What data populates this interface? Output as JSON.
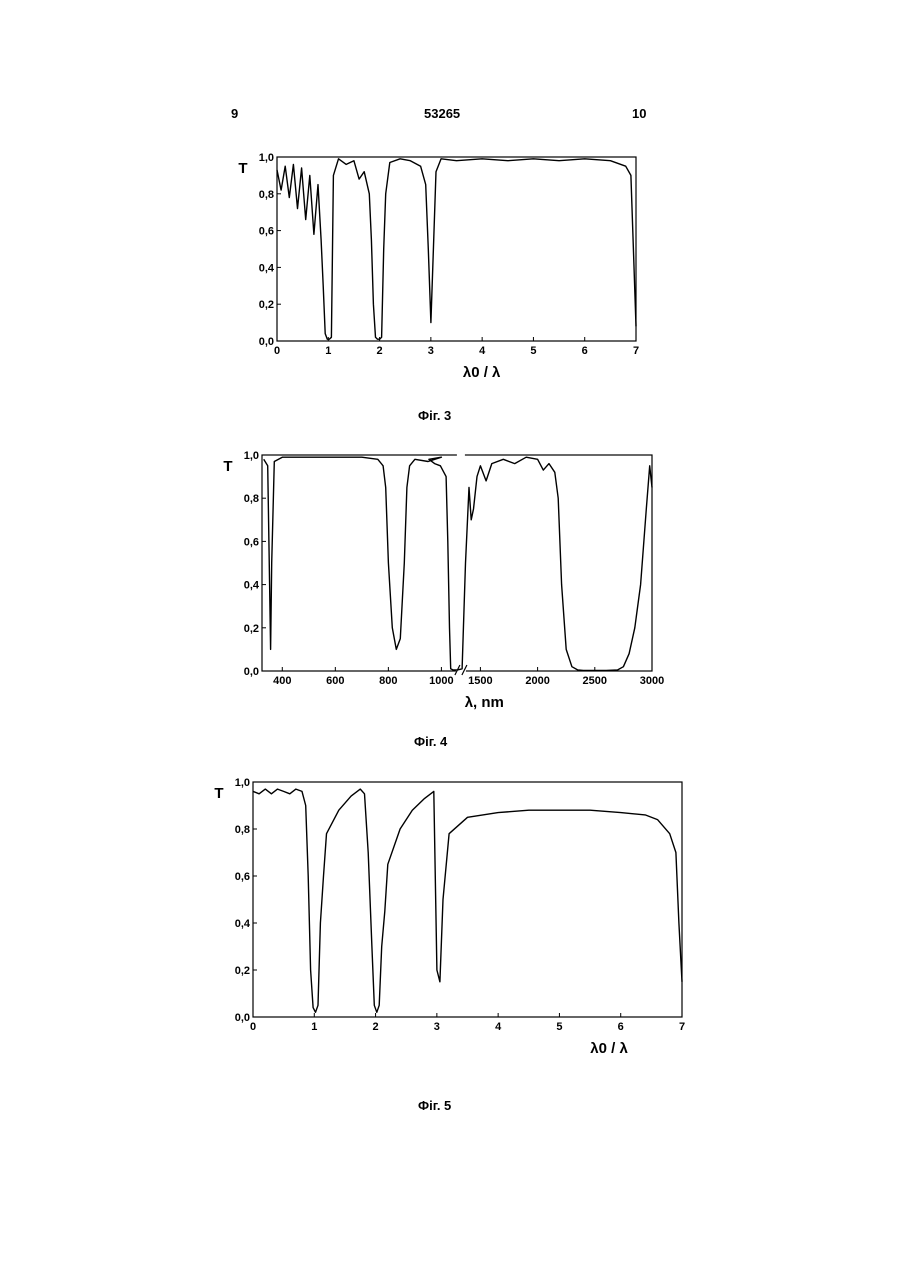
{
  "header": {
    "left_page": "9",
    "center_number": "53265",
    "right_page": "10"
  },
  "figures": [
    {
      "caption": "Фіг. 3",
      "ylabel": "T",
      "xlabel": "λ0 / λ"
    },
    {
      "caption": "Фіг. 4",
      "ylabel": "T",
      "xlabel": "λ, nm"
    },
    {
      "caption": "Фіг. 5",
      "ylabel": "T",
      "xlabel": "λ0 / λ"
    }
  ],
  "chart_data": [
    {
      "type": "line",
      "title": "",
      "ylabel": "T",
      "xlabel": "λ0 / λ",
      "xlim": [
        0,
        7
      ],
      "ylim": [
        0,
        1
      ],
      "x_ticks": [
        "0",
        "1",
        "2",
        "3",
        "4",
        "5",
        "6",
        "7"
      ],
      "y_ticks": [
        "0,0",
        "0,2",
        "0,4",
        "0,6",
        "0,8",
        "1,0"
      ],
      "grid": false,
      "series": [
        {
          "x": [
            0,
            0.08,
            0.16,
            0.24,
            0.32,
            0.4,
            0.48,
            0.56,
            0.64,
            0.72,
            0.8,
            0.86,
            0.9,
            0.94,
            0.98,
            1.02,
            1.06,
            1.1,
            1.2,
            1.35,
            1.5,
            1.6,
            1.7,
            1.8,
            1.84,
            1.88,
            1.92,
            1.96,
            2.0,
            2.04,
            2.08,
            2.12,
            2.2,
            2.4,
            2.6,
            2.8,
            2.9,
            2.95,
            3.0,
            3.05,
            3.1,
            3.2,
            3.5,
            4,
            4.5,
            5,
            5.5,
            6,
            6.5,
            6.8,
            6.9,
            6.95,
            7.0
          ],
          "y": [
            0.93,
            0.82,
            0.95,
            0.78,
            0.96,
            0.72,
            0.94,
            0.66,
            0.9,
            0.58,
            0.85,
            0.55,
            0.3,
            0.04,
            0.01,
            0.01,
            0.02,
            0.9,
            0.99,
            0.96,
            0.98,
            0.88,
            0.92,
            0.8,
            0.55,
            0.2,
            0.02,
            0.01,
            0.01,
            0.02,
            0.5,
            0.8,
            0.97,
            0.99,
            0.98,
            0.95,
            0.85,
            0.5,
            0.1,
            0.5,
            0.92,
            0.99,
            0.98,
            0.99,
            0.98,
            0.99,
            0.98,
            0.99,
            0.98,
            0.95,
            0.9,
            0.5,
            0.08
          ]
        }
      ]
    },
    {
      "type": "line",
      "title": "",
      "ylabel": "T",
      "xlabel": "λ, nm",
      "xlim": [
        300,
        3000
      ],
      "ylim": [
        0,
        1
      ],
      "x_ticks": [
        "400",
        "600",
        "800",
        "1000",
        "1500",
        "2000",
        "2500",
        "3000"
      ],
      "y_ticks": [
        "0,0",
        "0,2",
        "0,4",
        "0,6",
        "0,8",
        "1,0"
      ],
      "grid": false,
      "series": [
        {
          "x": [
            330,
            345,
            352,
            356,
            360,
            370,
            400,
            500,
            600,
            700,
            760,
            780,
            790,
            800,
            815,
            830,
            845,
            860,
            870,
            880,
            900,
            950,
            1000,
            1050,
            1100,
            1150,
            1200,
            1215,
            1230,
            1240,
            1260,
            1300,
            1340,
            1370,
            1400,
            1420,
            1440,
            1470,
            1500,
            1550,
            1600,
            1700,
            1800,
            1900,
            2000,
            2050,
            2100,
            2150,
            2180,
            2210,
            2250,
            2300,
            2350,
            2400,
            2500,
            2600,
            2700,
            2750,
            2800,
            2850,
            2900,
            2950,
            2980,
            3000
          ],
          "y": [
            0.98,
            0.95,
            0.4,
            0.1,
            0.5,
            0.97,
            0.99,
            0.99,
            0.99,
            0.99,
            0.98,
            0.95,
            0.85,
            0.5,
            0.2,
            0.1,
            0.15,
            0.5,
            0.85,
            0.95,
            0.98,
            0.97,
            0.99,
            0.98,
            0.96,
            0.95,
            0.9,
            0.6,
            0.2,
            0.01,
            0.005,
            0.005,
            0.01,
            0.5,
            0.85,
            0.7,
            0.75,
            0.9,
            0.95,
            0.88,
            0.96,
            0.98,
            0.96,
            0.99,
            0.98,
            0.93,
            0.96,
            0.92,
            0.8,
            0.4,
            0.1,
            0.02,
            0.005,
            0.003,
            0.003,
            0.003,
            0.005,
            0.02,
            0.08,
            0.2,
            0.4,
            0.75,
            0.95,
            0.85
          ]
        }
      ]
    },
    {
      "type": "line",
      "title": "",
      "ylabel": "T",
      "xlabel": "λ0 / λ",
      "xlim": [
        0,
        7
      ],
      "ylim": [
        0,
        1
      ],
      "x_ticks": [
        "0",
        "1",
        "2",
        "3",
        "4",
        "5",
        "6",
        "7"
      ],
      "y_ticks": [
        "0,0",
        "0,2",
        "0,4",
        "0,6",
        "0,8",
        "1,0"
      ],
      "grid": false,
      "series": [
        {
          "x": [
            0,
            0.1,
            0.2,
            0.3,
            0.4,
            0.5,
            0.6,
            0.7,
            0.8,
            0.86,
            0.9,
            0.94,
            0.98,
            1.02,
            1.06,
            1.1,
            1.15,
            1.2,
            1.4,
            1.6,
            1.75,
            1.82,
            1.88,
            1.94,
            1.98,
            2.02,
            2.06,
            2.1,
            2.15,
            2.2,
            2.4,
            2.6,
            2.8,
            2.95,
            3.0,
            3.05,
            3.1,
            3.2,
            3.5,
            4,
            4.5,
            5,
            5.5,
            6,
            6.4,
            6.6,
            6.8,
            6.9,
            6.95,
            7.0
          ],
          "y": [
            0.96,
            0.95,
            0.97,
            0.95,
            0.97,
            0.96,
            0.95,
            0.97,
            0.96,
            0.9,
            0.6,
            0.2,
            0.04,
            0.02,
            0.05,
            0.4,
            0.6,
            0.78,
            0.88,
            0.94,
            0.97,
            0.95,
            0.7,
            0.3,
            0.05,
            0.02,
            0.05,
            0.3,
            0.45,
            0.65,
            0.8,
            0.88,
            0.93,
            0.96,
            0.2,
            0.15,
            0.5,
            0.78,
            0.85,
            0.87,
            0.88,
            0.88,
            0.88,
            0.87,
            0.86,
            0.84,
            0.78,
            0.7,
            0.4,
            0.15
          ]
        }
      ]
    }
  ]
}
